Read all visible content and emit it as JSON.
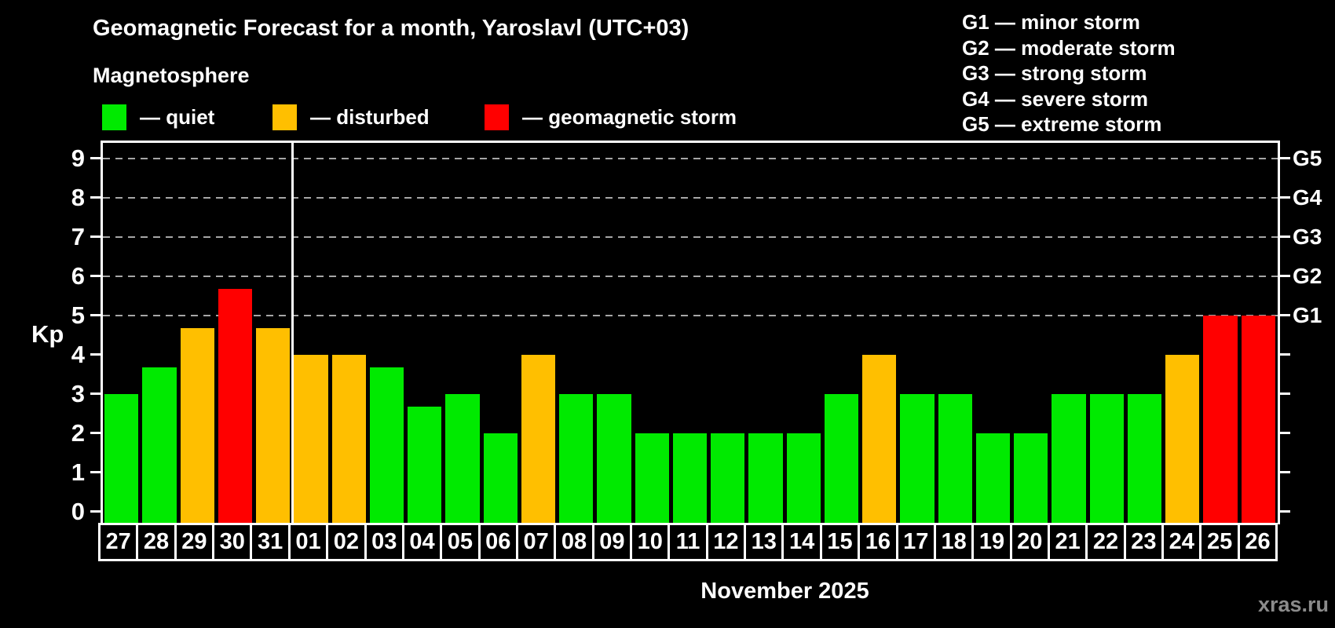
{
  "title": "Geomagnetic Forecast for a month, Yaroslavl (UTC+03)",
  "subtitle": "Magnetosphere",
  "watermark": "xras.ru",
  "legend": {
    "items": [
      {
        "key": "quiet",
        "label": "— quiet",
        "color": "#00ea00"
      },
      {
        "key": "disturbed",
        "label": "— disturbed",
        "color": "#ffbf00"
      },
      {
        "key": "storm",
        "label": "— geomagnetic storm",
        "color": "#ff0000"
      }
    ]
  },
  "g_legend": {
    "items": [
      "G1 — minor storm",
      "G2 — moderate storm",
      "G3 — strong storm",
      "G4 — severe storm",
      "G5 — extreme storm"
    ]
  },
  "axes": {
    "y_label": "Kp",
    "y_ticks": [
      "0",
      "1",
      "2",
      "3",
      "4",
      "5",
      "6",
      "7",
      "8",
      "9"
    ],
    "right_scale": [
      {
        "code": "G1",
        "kp": 5
      },
      {
        "code": "G2",
        "kp": 6
      },
      {
        "code": "G3",
        "kp": 7
      },
      {
        "code": "G4",
        "kp": 8
      },
      {
        "code": "G5",
        "kp": 9
      }
    ],
    "x_label": "November 2025"
  },
  "chart_data": {
    "type": "bar",
    "title": "Geomagnetic Forecast for a month, Yaroslavl (UTC+03)",
    "ylabel": "Kp",
    "xlabel": "November 2025",
    "ylim": [
      0,
      9.4
    ],
    "grid_kp": [
      5,
      6,
      7,
      8,
      9
    ],
    "legend_position": "top",
    "month_separator_after": "31",
    "categories": [
      "27",
      "28",
      "29",
      "30",
      "31",
      "01",
      "02",
      "03",
      "04",
      "05",
      "06",
      "07",
      "08",
      "09",
      "10",
      "11",
      "12",
      "13",
      "14",
      "15",
      "16",
      "17",
      "18",
      "19",
      "20",
      "21",
      "22",
      "23",
      "24",
      "25",
      "26"
    ],
    "values": [
      3,
      3.67,
      4.67,
      5.67,
      4.67,
      4,
      4,
      3.67,
      2.67,
      3,
      2,
      4,
      3,
      3,
      2,
      2,
      2,
      2,
      2,
      3,
      4,
      3,
      3,
      2,
      2,
      3,
      3,
      3,
      4,
      5,
      5
    ],
    "statuses": [
      "quiet",
      "quiet",
      "disturbed",
      "storm",
      "disturbed",
      "disturbed",
      "disturbed",
      "quiet",
      "quiet",
      "quiet",
      "quiet",
      "disturbed",
      "quiet",
      "quiet",
      "quiet",
      "quiet",
      "quiet",
      "quiet",
      "quiet",
      "quiet",
      "disturbed",
      "quiet",
      "quiet",
      "quiet",
      "quiet",
      "quiet",
      "quiet",
      "quiet",
      "disturbed",
      "storm",
      "storm"
    ],
    "status_colors": {
      "quiet": "#00ea00",
      "disturbed": "#ffbf00",
      "storm": "#ff0000"
    }
  }
}
